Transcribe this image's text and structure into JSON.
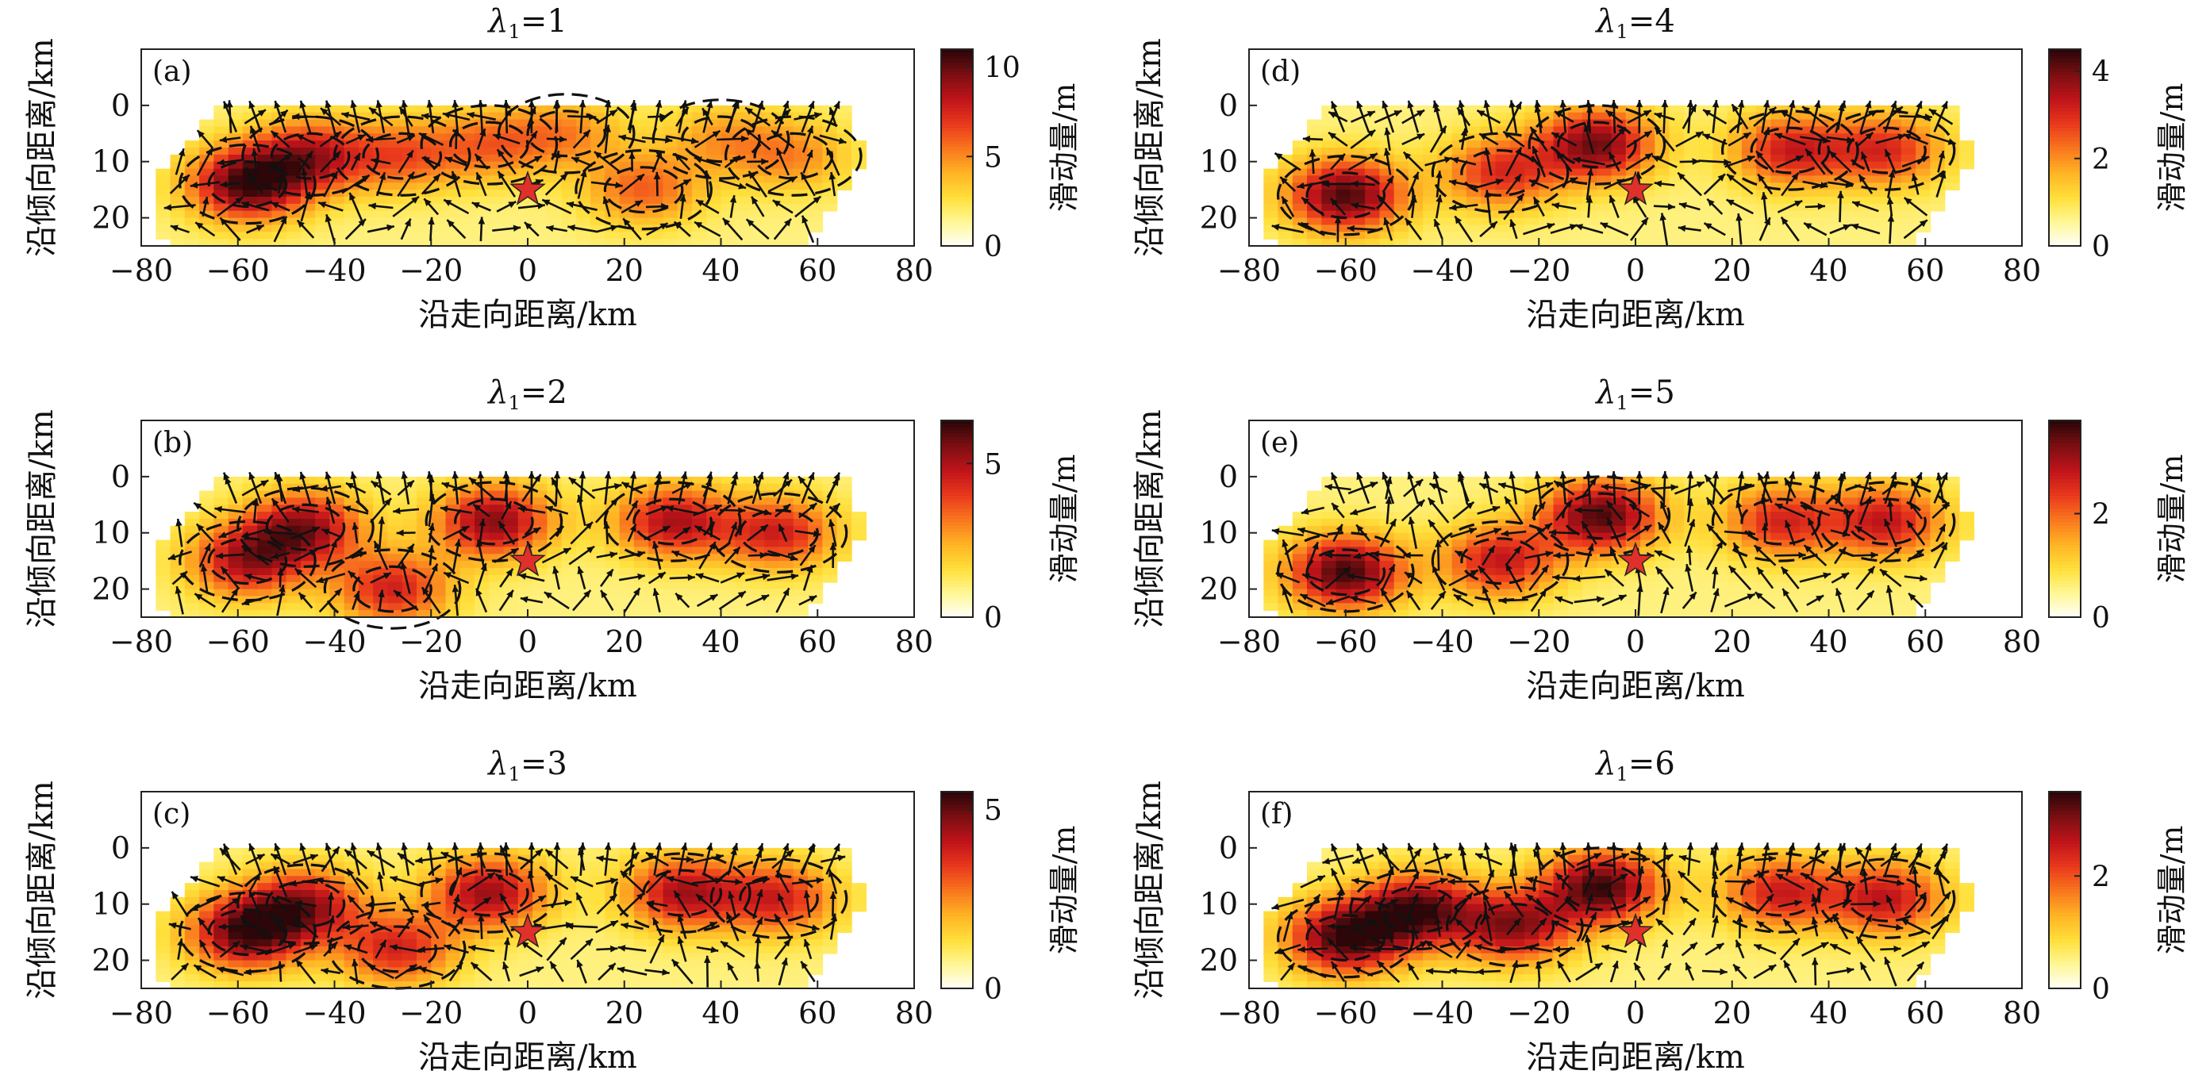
{
  "figure": {
    "xlabel": "沿走向距离/km",
    "ylabel": "沿倾向距离/km",
    "colorbar_label": "滑动量/m",
    "colormap": [
      "#ffffff",
      "#fff89a",
      "#ffe03c",
      "#ffb524",
      "#f9781e",
      "#ea3a1c",
      "#c0141a",
      "#7e0f12",
      "#2c0608"
    ],
    "hypocenter_color": "#e0302a",
    "contour_color": "#111111"
  },
  "chart_data": [
    {
      "type": "heatmap",
      "panel_label": "(a)",
      "title_symbol": "λ",
      "title_subscript": "1",
      "title_value": "=1",
      "xlim": [
        -80,
        80
      ],
      "ylim": [
        25,
        -10
      ],
      "x_ticks": [
        "−80",
        "−60",
        "−40",
        "−20",
        "0",
        "20",
        "40",
        "60",
        "80"
      ],
      "y_ticks": [
        "0",
        "10",
        "20"
      ],
      "colorbar_ticks": [
        "0",
        "5",
        "10"
      ],
      "colorbar_max": 11,
      "hypocenter": [
        0,
        15
      ],
      "slip_patches": [
        {
          "x": -58,
          "y": 14,
          "peak": 10.5
        },
        {
          "x": -45,
          "y": 9,
          "peak": 8
        },
        {
          "x": -26,
          "y": 9,
          "peak": 6
        },
        {
          "x": -8,
          "y": 7,
          "peak": 5.5
        },
        {
          "x": 8,
          "y": 5,
          "peak": 5
        },
        {
          "x": 24,
          "y": 15,
          "peak": 6
        },
        {
          "x": 40,
          "y": 6,
          "peak": 4.5
        },
        {
          "x": 55,
          "y": 9,
          "peak": 5
        }
      ]
    },
    {
      "type": "heatmap",
      "panel_label": "(b)",
      "title_symbol": "λ",
      "title_subscript": "1",
      "title_value": "=2",
      "xlim": [
        -80,
        80
      ],
      "ylim": [
        25,
        -10
      ],
      "x_ticks": [
        "−80",
        "−60",
        "−40",
        "−20",
        "0",
        "20",
        "40",
        "60",
        "80"
      ],
      "y_ticks": [
        "0",
        "10",
        "20"
      ],
      "colorbar_ticks": [
        "0",
        "5"
      ],
      "colorbar_max": 6.4,
      "hypocenter": [
        0,
        15
      ],
      "slip_patches": [
        {
          "x": -58,
          "y": 15,
          "peak": 5
        },
        {
          "x": -46,
          "y": 9,
          "peak": 5.2
        },
        {
          "x": -28,
          "y": 20,
          "peak": 4.5
        },
        {
          "x": -7,
          "y": 8,
          "peak": 5.5
        },
        {
          "x": 30,
          "y": 8,
          "peak": 5
        },
        {
          "x": 52,
          "y": 10,
          "peak": 4.5
        }
      ]
    },
    {
      "type": "heatmap",
      "panel_label": "(c)",
      "title_symbol": "λ",
      "title_subscript": "1",
      "title_value": "=3",
      "xlim": [
        -80,
        80
      ],
      "ylim": [
        25,
        -10
      ],
      "x_ticks": [
        "−80",
        "−60",
        "−40",
        "−20",
        "0",
        "20",
        "40",
        "60",
        "80"
      ],
      "y_ticks": [
        "0",
        "10",
        "20"
      ],
      "colorbar_ticks": [
        "0",
        "5"
      ],
      "colorbar_max": 5.5,
      "hypocenter": [
        0,
        15
      ],
      "slip_patches": [
        {
          "x": -58,
          "y": 15,
          "peak": 5.2
        },
        {
          "x": -46,
          "y": 10,
          "peak": 4.2
        },
        {
          "x": -27,
          "y": 18,
          "peak": 3.8
        },
        {
          "x": -8,
          "y": 8,
          "peak": 4.5
        },
        {
          "x": 32,
          "y": 8,
          "peak": 4.3
        },
        {
          "x": 52,
          "y": 9,
          "peak": 3.8
        }
      ]
    },
    {
      "type": "heatmap",
      "panel_label": "(d)",
      "title_symbol": "λ",
      "title_subscript": "1",
      "title_value": "=4",
      "xlim": [
        -80,
        80
      ],
      "ylim": [
        25,
        -10
      ],
      "x_ticks": [
        "−80",
        "−60",
        "−40",
        "−20",
        "0",
        "20",
        "40",
        "60",
        "80"
      ],
      "y_ticks": [
        "0",
        "10",
        "20"
      ],
      "colorbar_ticks": [
        "0",
        "2",
        "4"
      ],
      "colorbar_max": 4.5,
      "hypocenter": [
        0,
        15
      ],
      "slip_patches": [
        {
          "x": -60,
          "y": 16,
          "peak": 4.3
        },
        {
          "x": -28,
          "y": 12,
          "peak": 3.0
        },
        {
          "x": -8,
          "y": 7,
          "peak": 4.0
        },
        {
          "x": 32,
          "y": 8,
          "peak": 3.2
        },
        {
          "x": 52,
          "y": 8,
          "peak": 3.0
        }
      ]
    },
    {
      "type": "heatmap",
      "panel_label": "(e)",
      "title_symbol": "λ",
      "title_subscript": "1",
      "title_value": "=5",
      "xlim": [
        -80,
        80
      ],
      "ylim": [
        25,
        -10
      ],
      "x_ticks": [
        "−80",
        "−60",
        "−40",
        "−20",
        "0",
        "20",
        "40",
        "60",
        "80"
      ],
      "y_ticks": [
        "0",
        "10",
        "20"
      ],
      "colorbar_ticks": [
        "0",
        "2"
      ],
      "colorbar_max": 3.8,
      "hypocenter": [
        0,
        15
      ],
      "slip_patches": [
        {
          "x": -60,
          "y": 17,
          "peak": 3.7
        },
        {
          "x": -28,
          "y": 15,
          "peak": 2.8
        },
        {
          "x": -7,
          "y": 7,
          "peak": 3.6
        },
        {
          "x": 30,
          "y": 8,
          "peak": 2.6
        },
        {
          "x": 52,
          "y": 8,
          "peak": 2.8
        }
      ]
    },
    {
      "type": "heatmap",
      "panel_label": "(f)",
      "title_symbol": "λ",
      "title_subscript": "1",
      "title_value": "=6",
      "xlim": [
        -80,
        80
      ],
      "ylim": [
        25,
        -10
      ],
      "x_ticks": [
        "−80",
        "−60",
        "−40",
        "−20",
        "0",
        "20",
        "40",
        "60",
        "80"
      ],
      "y_ticks": [
        "0",
        "10",
        "20"
      ],
      "colorbar_ticks": [
        "0",
        "2"
      ],
      "colorbar_max": 3.5,
      "hypocenter": [
        0,
        15
      ],
      "slip_patches": [
        {
          "x": -60,
          "y": 16,
          "peak": 3.4
        },
        {
          "x": -45,
          "y": 11,
          "peak": 3.2
        },
        {
          "x": -25,
          "y": 14,
          "peak": 2.9
        },
        {
          "x": -7,
          "y": 7,
          "peak": 3.4
        },
        {
          "x": 30,
          "y": 8,
          "peak": 2.5
        },
        {
          "x": 52,
          "y": 9,
          "peak": 2.6
        }
      ]
    }
  ]
}
